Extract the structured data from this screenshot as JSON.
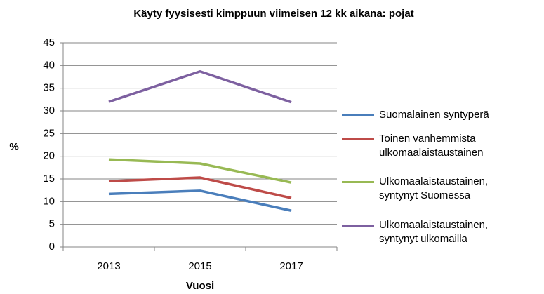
{
  "chart_data": {
    "type": "line",
    "title": "Käyty fyysisesti kimppuun viimeisen 12 kk aikana: pojat",
    "x_label": "Vuosi",
    "y_label": "%",
    "categories": [
      "2013",
      "2015",
      "2017"
    ],
    "series": [
      {
        "name": "Suomalainen syntyperä",
        "color": "#4a7ebb",
        "values": [
          11.7,
          12.4,
          8.0
        ]
      },
      {
        "name": "Toinen vanhemmista ulkomaalaistaustainen",
        "color": "#be4b48",
        "values": [
          14.5,
          15.3,
          10.8
        ]
      },
      {
        "name": "Ulkomaalaistaustainen, syntynyt Suomessa",
        "color": "#98b954",
        "values": [
          19.3,
          18.4,
          14.2
        ]
      },
      {
        "name": "Ulkomaalaistaustainen, syntynyt ulkomailla",
        "color": "#7d60a0",
        "values": [
          32.0,
          38.7,
          31.9
        ]
      }
    ],
    "ylim": [
      0,
      45
    ],
    "yticks": [
      0,
      5,
      10,
      15,
      20,
      25,
      30,
      35,
      40,
      45
    ],
    "grid": true
  }
}
